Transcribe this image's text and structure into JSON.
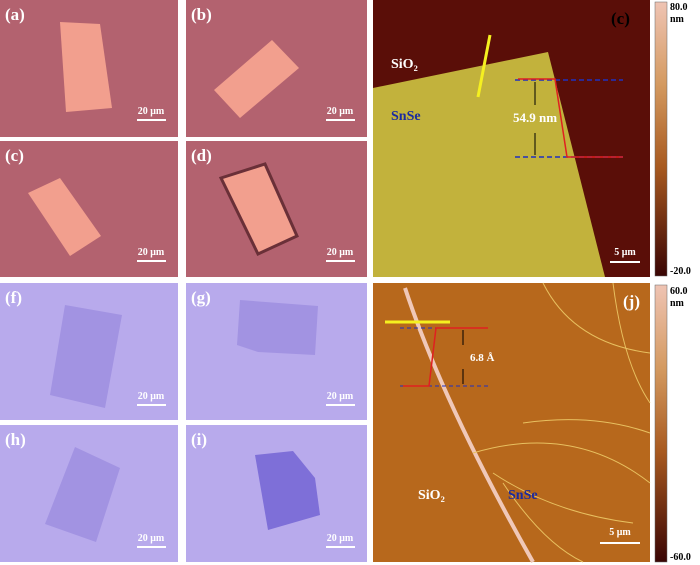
{
  "panels": [
    {
      "label": "(a)",
      "scale_bar": "20 μm"
    },
    {
      "label": "(b)",
      "scale_bar": "20 μm"
    },
    {
      "label": "(c)",
      "scale_bar": "20 μm"
    },
    {
      "label": "(d)",
      "scale_bar": "20 μm"
    },
    {
      "label": "(f)",
      "scale_bar": "20 μm"
    },
    {
      "label": "(g)",
      "scale_bar": "20 μm"
    },
    {
      "label": "(h)",
      "scale_bar": "20 μm"
    },
    {
      "label": "(i)",
      "scale_bar": "20 μm"
    }
  ],
  "afm": [
    {
      "label": "(c)",
      "scale_bar": "5 μm",
      "colorbar_max": "80.0",
      "colorbar_unit": "nm",
      "colorbar_min": "-20.0",
      "substrate": "SiO₂",
      "flake": "SnSe",
      "step_height": "54.9 nm"
    },
    {
      "label": "(j)",
      "scale_bar": "5 μm",
      "colorbar_max": "60.0",
      "colorbar_unit": "nm",
      "colorbar_min": "-60.0",
      "substrate": "SiO₂",
      "flake": "SnSe",
      "step_height": "6.8 Å"
    }
  ]
}
